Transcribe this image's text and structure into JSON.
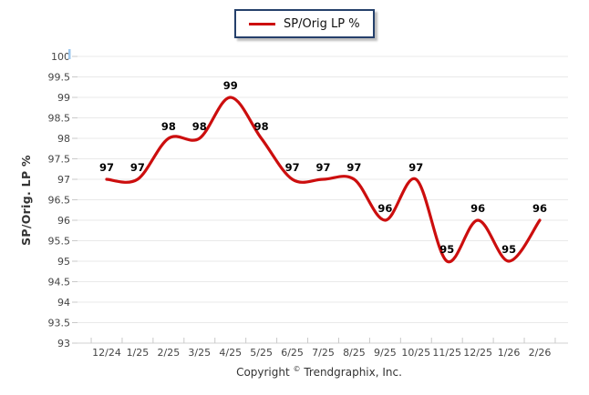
{
  "legend": {
    "label": "SP/Orig LP %"
  },
  "footer": {
    "prefix": "Copyright ",
    "symbol": "©",
    "company": " Trendgraphix, Inc."
  },
  "colors": {
    "series_line": "#cc0e0e",
    "gridline": "#e9e9e9",
    "axis_line": "#d2d2d2",
    "tick": "#c9c9c9",
    "axis_label": "#454545",
    "data_label": "#000000",
    "legend_border": "#25406b",
    "cursor_artifact": "#9cc7ee"
  },
  "chart_data": {
    "type": "line",
    "title": "",
    "ylabel": "SP/Orig. LP %",
    "xlabel": "",
    "categories": [
      "12/24",
      "1/25",
      "2/25",
      "3/25",
      "4/25",
      "5/25",
      "6/25",
      "7/25",
      "8/25",
      "9/25",
      "10/25",
      "11/25",
      "12/25",
      "1/26",
      "2/26"
    ],
    "series": [
      {
        "name": "SP/Orig LP %",
        "color": "#cc0e0e",
        "values": [
          97,
          97,
          98,
          98,
          99,
          98,
          97,
          97,
          97,
          96,
          97,
          95,
          96,
          95,
          96
        ]
      }
    ],
    "ylim": [
      93,
      100
    ],
    "y_tick_step": 0.5,
    "grid": true,
    "legend_position": "top-center",
    "smooth": true,
    "data_labels": true
  }
}
